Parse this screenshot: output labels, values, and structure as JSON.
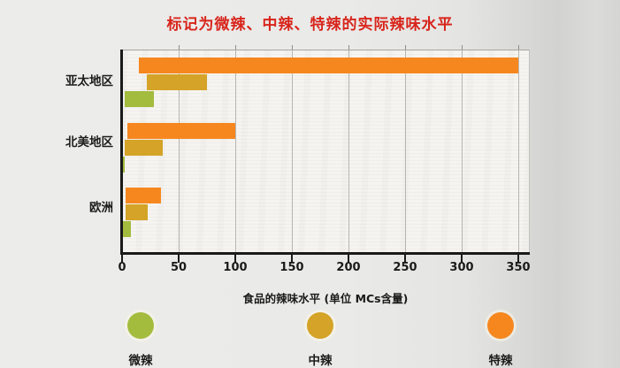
{
  "title": {
    "text": "标记为微辣、中辣、特辣的实际辣味水平",
    "color": "#D8251C"
  },
  "chart_data": {
    "type": "bar",
    "orientation": "horizontal",
    "title": "标记为微辣、中辣、特辣的实际辣味水平",
    "xlabel": "食品的辣味水平 (单位 MCs含量)",
    "categories": [
      "亚太地区",
      "北美地区",
      "欧洲"
    ],
    "xticks": [
      0,
      50,
      100,
      150,
      200,
      250,
      300,
      350
    ],
    "xlim": [
      0,
      359
    ],
    "grid": true,
    "legend_position": "bottom",
    "series": [
      {
        "name": "特辣",
        "color": "#F6871F",
        "ranges": [
          {
            "start": 15,
            "end": 350
          },
          {
            "start": 5,
            "end": 100
          },
          {
            "start": 3,
            "end": 34
          }
        ]
      },
      {
        "name": "中辣",
        "color": "#D4A327",
        "ranges": [
          {
            "start": 22,
            "end": 75
          },
          {
            "start": 2,
            "end": 36
          },
          {
            "start": 3,
            "end": 23
          }
        ]
      },
      {
        "name": "微辣",
        "color": "#A3BC3E",
        "ranges": [
          {
            "start": 2,
            "end": 28
          },
          {
            "start": 0,
            "end": 2
          },
          {
            "start": 1,
            "end": 8
          }
        ]
      }
    ]
  },
  "legend": {
    "items": [
      {
        "label": "微辣",
        "color": "#A3BC3E"
      },
      {
        "label": "中辣",
        "color": "#D4A327"
      },
      {
        "label": "特辣",
        "color": "#F6871F"
      }
    ]
  },
  "colors": {
    "title_red": "#D8251C",
    "axis_black": "#1A1A18",
    "gridline_gray": "#B7B5B1",
    "plot_paper": "#F5F4F1",
    "background_gray": "#EAEAE8"
  }
}
